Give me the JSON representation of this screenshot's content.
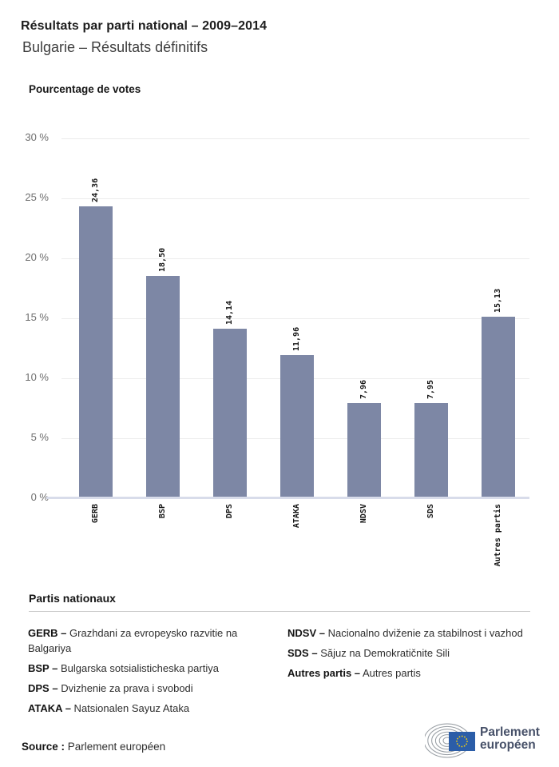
{
  "header": {
    "title": "Résultats par parti national – 2009–2014",
    "subtitle": "Bulgarie – Résultats définitifs"
  },
  "chart_data": {
    "type": "bar",
    "title": "Pourcentage de votes",
    "categories": [
      "GERB",
      "BSP",
      "DPS",
      "ATAKA",
      "NDSV",
      "SDS",
      "Autres partis"
    ],
    "values": [
      24.36,
      18.5,
      14.14,
      11.96,
      7.96,
      7.95,
      15.13
    ],
    "value_labels": [
      "24,36",
      "18,50",
      "14,14",
      "11,96",
      "7,96",
      "7,95",
      "15,13"
    ],
    "xlabel": "",
    "ylabel": "Pourcentage de votes",
    "ylim": [
      0,
      30
    ],
    "ytick_step": 5,
    "ytick_labels": [
      "30 %",
      "25 %",
      "20 %",
      "15 %",
      "10 %",
      "5 %",
      "0 %"
    ],
    "grid": true,
    "legend_position": "below-chart",
    "bar_color": "#7d87a5"
  },
  "legend": {
    "heading": "Partis nationaux",
    "columns": [
      [
        {
          "label": "GERB –",
          "text": "Grazhdani za evropeysko razvitie na Balgariya"
        },
        {
          "label": "BSP –",
          "text": "Bulgarska sotsialisticheska partiya"
        },
        {
          "label": "DPS –",
          "text": "Dvizhenie za prava i svobodi"
        },
        {
          "label": "ATAKA –",
          "text": "Natsionalen Sayuz Ataka"
        }
      ],
      [
        {
          "label": "NDSV –",
          "text": "Nacionalno dviženie za stabilnost i vazhod"
        },
        {
          "label": "SDS –",
          "text": "Săjuz na Demokratičnite Sili"
        },
        {
          "label": "Autres partis –",
          "text": "Autres partis"
        }
      ]
    ]
  },
  "footer": {
    "source_label": "Source :",
    "source_value": "Parlement européen",
    "logo": {
      "line1": "Parlement",
      "line2": "européen"
    }
  },
  "colors": {
    "bar": "#7d87a5",
    "gridline": "#ececec",
    "axis_line": "#d8dcea",
    "eu_blue": "#2b5da8",
    "star_yellow": "#f5d010",
    "logo_text": "#475169",
    "arc_gray": "#959ba1"
  }
}
